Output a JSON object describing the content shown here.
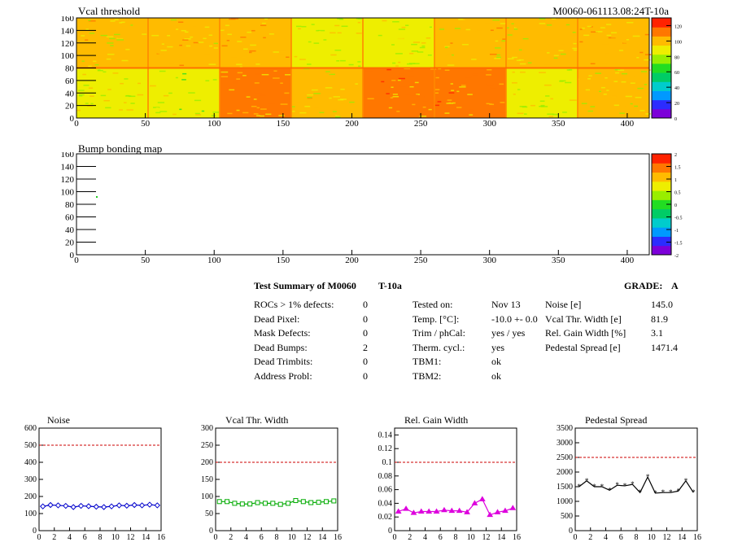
{
  "module_id": "M0060-061113.08:24T-10a",
  "vcal_map": {
    "title": "Vcal threshold",
    "x_ticks": [
      "0",
      "50",
      "100",
      "150",
      "200",
      "250",
      "300",
      "350",
      "400"
    ],
    "y_ticks": [
      "0",
      "20",
      "40",
      "60",
      "80",
      "100",
      "120",
      "140",
      "160"
    ],
    "colorbar_ticks": [
      "0",
      "20",
      "40",
      "60",
      "80",
      "100",
      "120"
    ],
    "roc_bands": [
      0.55,
      0.65,
      0.78,
      0.35,
      0.4,
      0.55,
      0.45,
      0.75,
      0.45,
      0.4,
      0.85,
      0.85,
      0.5,
      0.8,
      0.3,
      0.4
    ]
  },
  "bump_map": {
    "title": "Bump bonding map",
    "x_ticks": [
      "0",
      "50",
      "100",
      "150",
      "200",
      "250",
      "300",
      "350",
      "400"
    ],
    "y_ticks": [
      "0",
      "20",
      "40",
      "60",
      "80",
      "100",
      "120",
      "140",
      "160"
    ],
    "colorbar_ticks": [
      "-2",
      "-1.5",
      "-1",
      "-0.5",
      "0",
      "0.5",
      "1",
      "1.5",
      "2"
    ]
  },
  "summary": {
    "title": "Test Summary of M0060",
    "tag": "T-10a",
    "grade_label": "GRADE:",
    "grade": "A",
    "defects": [
      {
        "label": "ROCs > 1% defects:",
        "value": "0"
      },
      {
        "label": "Dead Pixel:",
        "value": "0"
      },
      {
        "label": "Mask Defects:",
        "value": "0"
      },
      {
        "label": "Dead Bumps:",
        "value": "2"
      },
      {
        "label": "Dead Trimbits:",
        "value": "0"
      },
      {
        "label": "Address Probl:",
        "value": "0"
      }
    ],
    "conditions": [
      {
        "label": "Tested on:",
        "value": "Nov 13"
      },
      {
        "label": "Temp. [°C]:",
        "value": "-10.0 +- 0.0"
      },
      {
        "label": "Trim / phCal:",
        "value": "yes / yes"
      },
      {
        "label": "Therm. cycl.:",
        "value": "yes"
      },
      {
        "label": "TBM1:",
        "value": "ok"
      },
      {
        "label": "TBM2:",
        "value": "ok"
      }
    ],
    "widths": [
      {
        "label": "Noise [e]",
        "value": "145.0"
      },
      {
        "label": "Vcal Thr. Width [e]",
        "value": "81.9"
      },
      {
        "label": "Rel. Gain Width [%]",
        "value": "3.1"
      },
      {
        "label": "Pedestal Spread [e]",
        "value": "1471.4"
      }
    ]
  },
  "chart_data": [
    {
      "type": "line",
      "title": "Noise",
      "color": "#0000cc",
      "marker": "diamond",
      "x": [
        0,
        1,
        2,
        3,
        4,
        5,
        6,
        7,
        8,
        9,
        10,
        11,
        12,
        13,
        14,
        15
      ],
      "values": [
        142,
        150,
        148,
        145,
        138,
        145,
        143,
        140,
        138,
        142,
        148,
        146,
        150,
        148,
        152,
        148
      ],
      "ylim": [
        0,
        600
      ],
      "threshold": 500,
      "threshold_color": "#cc0000",
      "y_ticks": [
        "0",
        "100",
        "200",
        "300",
        "400",
        "500",
        "600"
      ],
      "x_ticks": [
        "0",
        "2",
        "4",
        "6",
        "8",
        "10",
        "12",
        "14",
        "16"
      ]
    },
    {
      "type": "line",
      "title": "Vcal Thr. Width",
      "color": "#00aa00",
      "marker": "square",
      "x": [
        0,
        1,
        2,
        3,
        4,
        5,
        6,
        7,
        8,
        9,
        10,
        11,
        12,
        13,
        14,
        15
      ],
      "values": [
        85,
        85,
        80,
        78,
        78,
        82,
        80,
        80,
        77,
        80,
        88,
        85,
        82,
        83,
        85,
        87
      ],
      "ylim": [
        0,
        300
      ],
      "threshold": 200,
      "threshold_color": "#cc0000",
      "y_ticks": [
        "0",
        "50",
        "100",
        "150",
        "200",
        "250",
        "300"
      ],
      "x_ticks": [
        "0",
        "2",
        "4",
        "6",
        "8",
        "10",
        "12",
        "14",
        "16"
      ]
    },
    {
      "type": "line",
      "title": "Rel. Gain Width",
      "color": "#dd00dd",
      "marker": "triangle",
      "x": [
        0,
        1,
        2,
        3,
        4,
        5,
        6,
        7,
        8,
        9,
        10,
        11,
        12,
        13,
        14,
        15
      ],
      "values": [
        0.028,
        0.032,
        0.026,
        0.028,
        0.028,
        0.028,
        0.03,
        0.029,
        0.029,
        0.027,
        0.04,
        0.046,
        0.023,
        0.027,
        0.029,
        0.033
      ],
      "ylim": [
        0,
        0.15
      ],
      "threshold": 0.1,
      "threshold_color": "#cc0000",
      "y_ticks": [
        "0",
        "0.02",
        "0.04",
        "0.06",
        "0.08",
        "0.1",
        "0.12",
        "0.14"
      ],
      "x_ticks": [
        "0",
        "2",
        "4",
        "6",
        "8",
        "10",
        "12",
        "14",
        "16"
      ]
    },
    {
      "type": "line",
      "title": "Pedestal Spread",
      "color": "#000000",
      "marker": "star",
      "x": [
        0,
        1,
        2,
        3,
        4,
        5,
        6,
        7,
        8,
        9,
        10,
        11,
        12,
        13,
        14,
        15
      ],
      "values": [
        1500,
        1700,
        1500,
        1500,
        1380,
        1550,
        1530,
        1580,
        1300,
        1830,
        1280,
        1300,
        1300,
        1350,
        1700,
        1300
      ],
      "ylim": [
        0,
        3500
      ],
      "threshold": 2500,
      "threshold_color": "#cc0000",
      "y_ticks": [
        "0",
        "500",
        "1000",
        "1500",
        "2000",
        "2500",
        "3000",
        "3500"
      ],
      "x_ticks": [
        "0",
        "2",
        "4",
        "6",
        "8",
        "10",
        "12",
        "14",
        "16"
      ]
    }
  ]
}
